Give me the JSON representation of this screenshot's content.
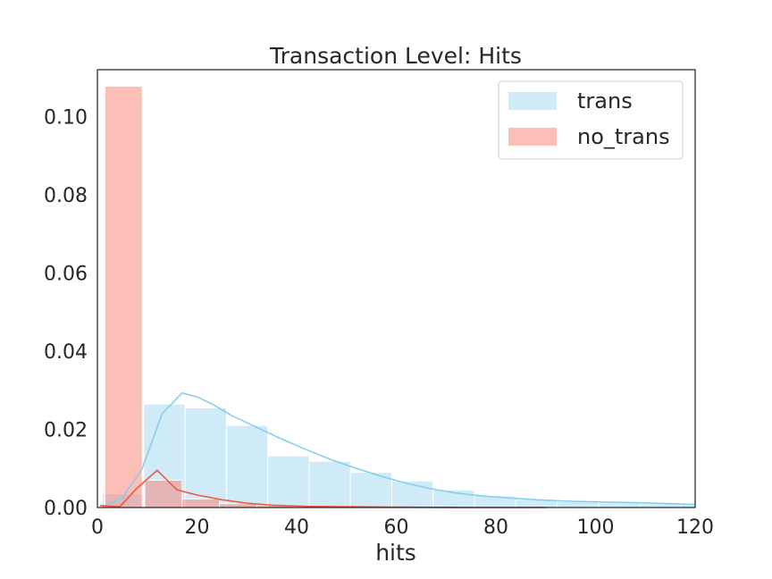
{
  "chart_data": {
    "type": "bar",
    "title": "Transaction Level: Hits",
    "xlabel": "hits",
    "ylabel": "",
    "xlim": [
      0,
      120
    ],
    "ylim": [
      0,
      0.112
    ],
    "xticks": [
      "0",
      "20",
      "40",
      "60",
      "80",
      "100",
      "120"
    ],
    "yticks": [
      "0.00",
      "0.02",
      "0.04",
      "0.06",
      "0.08",
      "0.10"
    ],
    "xtick_values": [
      0,
      20,
      40,
      60,
      80,
      100,
      120
    ],
    "ytick_values": [
      0,
      0.02,
      0.04,
      0.06,
      0.08,
      0.1
    ],
    "grid": false,
    "legend_position": "top-right",
    "series": [
      {
        "name": "trans",
        "color": "#87ceeb",
        "bar_opacity": 0.4,
        "bins": [
          {
            "x0": 1,
            "x1": 9.3,
            "y": 0.0035
          },
          {
            "x0": 9.3,
            "x1": 17.6,
            "y": 0.0265
          },
          {
            "x0": 17.6,
            "x1": 25.9,
            "y": 0.0255
          },
          {
            "x0": 25.9,
            "x1": 34.2,
            "y": 0.021
          },
          {
            "x0": 34.2,
            "x1": 42.5,
            "y": 0.0132
          },
          {
            "x0": 42.5,
            "x1": 50.8,
            "y": 0.0118
          },
          {
            "x0": 50.8,
            "x1": 59.1,
            "y": 0.009
          },
          {
            "x0": 59.1,
            "x1": 67.4,
            "y": 0.0068
          },
          {
            "x0": 67.4,
            "x1": 75.7,
            "y": 0.0045
          },
          {
            "x0": 75.7,
            "x1": 84,
            "y": 0.003
          },
          {
            "x0": 84,
            "x1": 92.3,
            "y": 0.002
          },
          {
            "x0": 92.3,
            "x1": 100.6,
            "y": 0.0015
          },
          {
            "x0": 100.6,
            "x1": 108.9,
            "y": 0.0012
          },
          {
            "x0": 108.9,
            "x1": 117.2,
            "y": 0.001
          },
          {
            "x0": 117.2,
            "x1": 120,
            "y": 0.0008
          }
        ],
        "kde": [
          {
            "x": 1,
            "y": 0.0
          },
          {
            "x": 5,
            "y": 0.0025
          },
          {
            "x": 9,
            "y": 0.01
          },
          {
            "x": 13,
            "y": 0.024
          },
          {
            "x": 17,
            "y": 0.0293
          },
          {
            "x": 20,
            "y": 0.0283
          },
          {
            "x": 23,
            "y": 0.0265
          },
          {
            "x": 27,
            "y": 0.0235
          },
          {
            "x": 32,
            "y": 0.0205
          },
          {
            "x": 37,
            "y": 0.0175
          },
          {
            "x": 42,
            "y": 0.0148
          },
          {
            "x": 47,
            "y": 0.0122
          },
          {
            "x": 52,
            "y": 0.01
          },
          {
            "x": 57,
            "y": 0.008
          },
          {
            "x": 62,
            "y": 0.0062
          },
          {
            "x": 67,
            "y": 0.0048
          },
          {
            "x": 72,
            "y": 0.0037
          },
          {
            "x": 77,
            "y": 0.003
          },
          {
            "x": 82,
            "y": 0.0025
          },
          {
            "x": 88,
            "y": 0.002
          },
          {
            "x": 95,
            "y": 0.0016
          },
          {
            "x": 102,
            "y": 0.0014
          },
          {
            "x": 110,
            "y": 0.0012
          },
          {
            "x": 120,
            "y": 0.0008
          }
        ]
      },
      {
        "name": "no_trans",
        "color": "#fa8072",
        "line_color": "#f05a3c",
        "bar_opacity": 0.5,
        "bins": [
          {
            "x0": 1.5,
            "x1": 9,
            "y": 0.1078
          },
          {
            "x0": 9.5,
            "x1": 17,
            "y": 0.007
          },
          {
            "x0": 17,
            "x1": 24.5,
            "y": 0.0022
          },
          {
            "x0": 24.5,
            "x1": 32,
            "y": 0.001
          },
          {
            "x0": 32,
            "x1": 39.5,
            "y": 0.0005
          },
          {
            "x0": 39.5,
            "x1": 47,
            "y": 0.0003
          },
          {
            "x0": 47,
            "x1": 54.5,
            "y": 0.0002
          }
        ],
        "kde": [
          {
            "x": 0.5,
            "y": 0.0005
          },
          {
            "x": 4.5,
            "y": 0.0002
          },
          {
            "x": 8,
            "y": 0.005
          },
          {
            "x": 12,
            "y": 0.0095
          },
          {
            "x": 16,
            "y": 0.0045
          },
          {
            "x": 20,
            "y": 0.0032
          },
          {
            "x": 25,
            "y": 0.002
          },
          {
            "x": 30,
            "y": 0.0011
          },
          {
            "x": 35,
            "y": 0.0006
          },
          {
            "x": 42,
            "y": 0.0003
          },
          {
            "x": 50,
            "y": 0.0002
          },
          {
            "x": 60,
            "y": 0.0001
          },
          {
            "x": 75,
            "y": 0.0
          },
          {
            "x": 90,
            "y": 0.0
          }
        ]
      }
    ]
  }
}
